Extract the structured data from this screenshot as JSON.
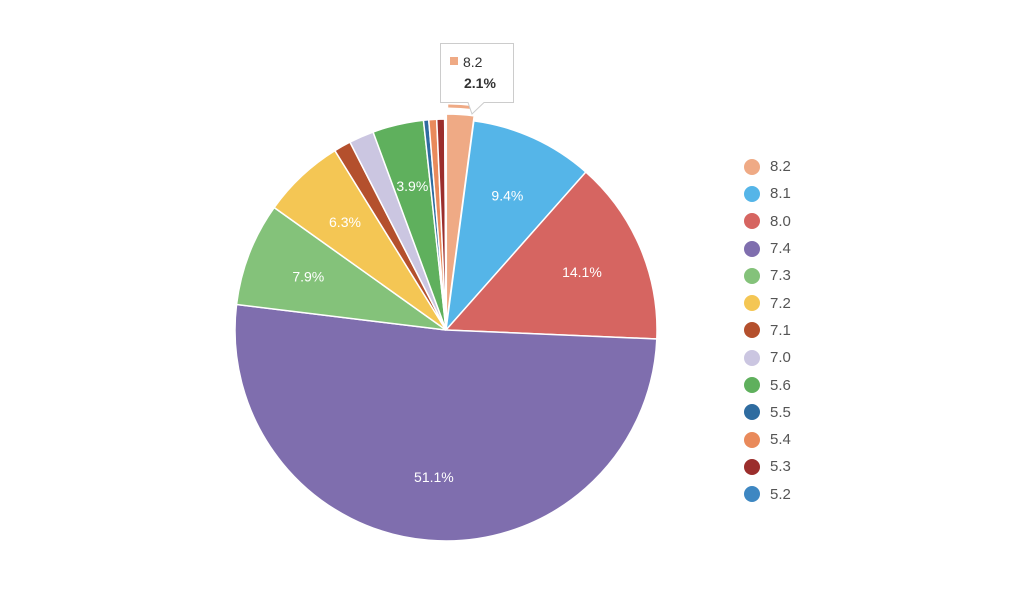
{
  "chart_data": {
    "type": "pie",
    "categories": [
      "8.2",
      "8.1",
      "8.0",
      "7.4",
      "7.3",
      "7.2",
      "7.1",
      "7.0",
      "5.6",
      "5.5",
      "5.4",
      "5.3",
      "5.2"
    ],
    "values": [
      2.1,
      9.4,
      14.1,
      51.1,
      7.9,
      6.3,
      1.3,
      1.9,
      3.9,
      0.4,
      0.6,
      0.6,
      0.1
    ],
    "data_labels": [
      "",
      "9.4%",
      "14.1%",
      "51.1%",
      "7.9%",
      "6.3%",
      "",
      "",
      "3.9%",
      "",
      "",
      "",
      ""
    ],
    "colors": [
      "#EFAA85",
      "#55B5E8",
      "#D66561",
      "#7F6EAE",
      "#84C27A",
      "#F4C654",
      "#B4502D",
      "#CBC6E1",
      "#5FB05D",
      "#2F6CA0",
      "#E98A5B",
      "#9B2E2C",
      "#3E87C2"
    ],
    "start_angle_deg": 0,
    "direction": "clockwise",
    "legend_position": "right",
    "highlighted_index": 0
  },
  "tooltip": {
    "name": "8.2",
    "value": "2.1%",
    "color": "#EFAA85"
  }
}
